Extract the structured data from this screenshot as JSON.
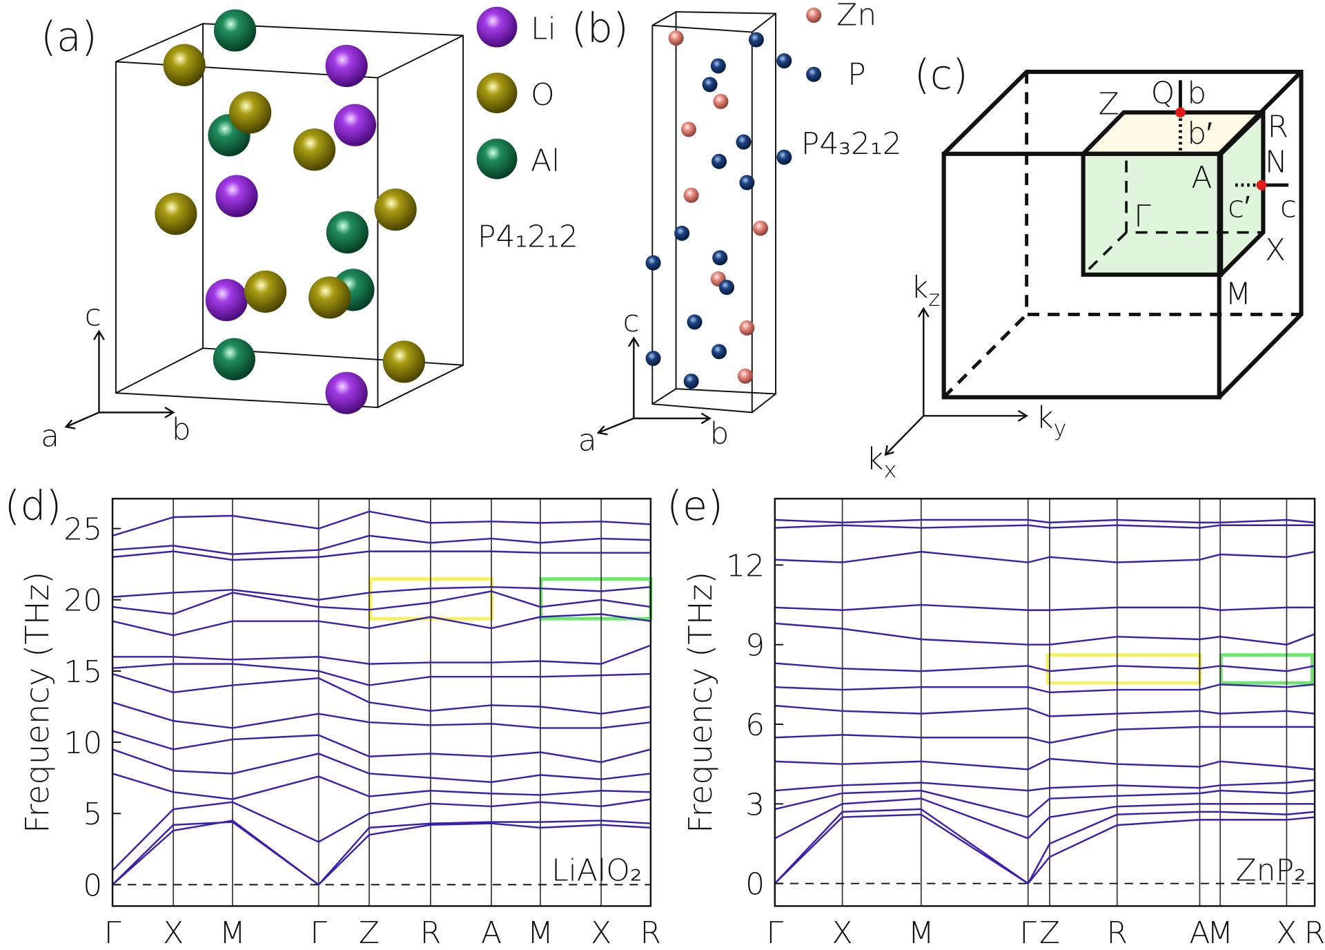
{
  "panels": {
    "a": {
      "label": "(a)",
      "legend": [
        "Li",
        "O",
        "Al"
      ],
      "space_group": "P4₁2₁2",
      "axes": [
        "c",
        "a",
        "b"
      ]
    },
    "b": {
      "label": "(b)",
      "legend": [
        "Zn",
        "P"
      ],
      "space_group": "P4₃2₁2",
      "axes": [
        "c",
        "a",
        "b"
      ]
    },
    "c": {
      "label": "(c)",
      "points": [
        "Z",
        "Q",
        "b",
        "R",
        "b′",
        "A",
        "N",
        "Γ",
        "c′",
        "c",
        "X",
        "M"
      ],
      "axes": [
        {
          "base": "k",
          "sub": "z"
        },
        {
          "base": "k",
          "sub": "y"
        },
        {
          "base": "k",
          "sub": "x"
        }
      ]
    }
  },
  "chart_data": [
    {
      "type": "line",
      "label": "(d)",
      "ylabel": "Frequency (THz)",
      "annotation": "LiAlO₂",
      "color": "#3b1fae",
      "x": [
        0,
        0.113,
        0.223,
        0.383,
        0.477,
        0.591,
        0.704,
        0.795,
        0.908,
        1
      ],
      "xlim": [
        0,
        1
      ],
      "xticks": [
        {
          "value": 0,
          "label": "Γ"
        },
        {
          "value": 0.113,
          "label": "X"
        },
        {
          "value": 0.223,
          "label": "M"
        },
        {
          "value": 0.383,
          "label": "Γ"
        },
        {
          "value": 0.477,
          "label": "Z"
        },
        {
          "value": 0.591,
          "label": "R"
        },
        {
          "value": 0.704,
          "label": "A"
        },
        {
          "value": 0.795,
          "label": "M"
        },
        {
          "value": 0.908,
          "label": "X"
        },
        {
          "value": 1,
          "label": "R"
        }
      ],
      "ylim": [
        -1.5,
        27.1
      ],
      "yticks": [
        0,
        5,
        10,
        15,
        20,
        25
      ],
      "series": [
        {
          "values": [
            0,
            3.8,
            4.5,
            0,
            3.5,
            4.2,
            4.3,
            4.0,
            4.2,
            4.0
          ]
        },
        {
          "values": [
            0,
            4.2,
            4.4,
            0,
            4.0,
            4.3,
            4.4,
            4.4,
            4.5,
            4.3
          ]
        },
        {
          "values": [
            1,
            5.3,
            5.8,
            3,
            5.0,
            5.7,
            5.5,
            5.8,
            5.5,
            6.0
          ]
        },
        {
          "values": [
            7.8,
            6.5,
            6.0,
            7.6,
            6.2,
            6.6,
            6.4,
            6.3,
            6.6,
            6.5
          ]
        },
        {
          "values": [
            9.5,
            8.0,
            7.8,
            9.2,
            7.8,
            7.5,
            7.2,
            7.7,
            7.4,
            7.8
          ]
        },
        {
          "values": [
            10.8,
            9.5,
            10.2,
            10.5,
            9.0,
            9.2,
            9.0,
            9.3,
            8.6,
            9.5
          ]
        },
        {
          "values": [
            12.8,
            11.5,
            11.0,
            12.0,
            11.4,
            11.2,
            11.3,
            11.0,
            11.0,
            11.4
          ]
        },
        {
          "values": [
            14.8,
            13.5,
            14.0,
            14.5,
            12.8,
            12.2,
            12.6,
            12.5,
            12.0,
            12.5
          ]
        },
        {
          "values": [
            15.2,
            15.5,
            15.5,
            15.0,
            14.0,
            14.6,
            14.6,
            14.6,
            14.7,
            14.8
          ]
        },
        {
          "values": [
            16.0,
            16.0,
            15.8,
            16.0,
            15.5,
            15.6,
            15.6,
            15.7,
            15.5,
            16.8
          ]
        },
        {
          "values": [
            18.5,
            17.5,
            18.5,
            18.5,
            18.0,
            18.8,
            18.0,
            18.8,
            19.0,
            18.5
          ]
        },
        {
          "values": [
            19.5,
            19.0,
            20.5,
            19.5,
            19.3,
            19.8,
            20.6,
            19.5,
            20.0,
            19.5
          ]
        },
        {
          "values": [
            20.2,
            20.5,
            20.7,
            20.0,
            20.5,
            20.8,
            20.9,
            20.8,
            20.6,
            20.9
          ]
        },
        {
          "values": [
            23.0,
            23.4,
            22.8,
            23.0,
            23.4,
            23.4,
            23.4,
            23.3,
            23.3,
            23.3
          ]
        },
        {
          "values": [
            23.5,
            23.8,
            23.2,
            23.5,
            24.5,
            24.0,
            24.3,
            24.0,
            24.3,
            24.2
          ]
        },
        {
          "values": [
            24.5,
            25.8,
            25.9,
            25.0,
            26.2,
            25.4,
            25.5,
            25.4,
            25.5,
            25.3
          ]
        }
      ]
    },
    {
      "type": "line",
      "label": "(e)",
      "ylabel": "Frequency (THz)",
      "annotation": "ZnP₂",
      "color": "#3b1fae",
      "x": [
        0,
        0.125,
        0.271,
        0.469,
        0.509,
        0.634,
        0.787,
        0.825,
        0.948,
        1
      ],
      "xlim": [
        0,
        1
      ],
      "xticks": [
        {
          "value": 0,
          "label": "Γ"
        },
        {
          "value": 0.125,
          "label": "X"
        },
        {
          "value": 0.271,
          "label": "M"
        },
        {
          "value": 0.469,
          "label": "Γ"
        },
        {
          "value": 0.509,
          "label": "Z"
        },
        {
          "value": 0.634,
          "label": "R"
        },
        {
          "value": 0.787,
          "label": "A"
        },
        {
          "value": 0.825,
          "label": "M"
        },
        {
          "value": 0.948,
          "label": "X"
        },
        {
          "value": 1,
          "label": "R"
        }
      ],
      "ylim": [
        -0.85,
        14.5
      ],
      "yticks": [
        0,
        3,
        6,
        9,
        12
      ],
      "series": [
        {
          "values": [
            0,
            2.5,
            2.6,
            0,
            1.0,
            2.2,
            2.4,
            2.4,
            2.4,
            2.5
          ]
        },
        {
          "values": [
            0,
            2.7,
            2.8,
            0,
            1.5,
            2.6,
            2.7,
            2.7,
            2.6,
            2.7
          ]
        },
        {
          "values": [
            1.7,
            3.0,
            3.2,
            1.7,
            2.5,
            2.9,
            3.0,
            3.0,
            3.0,
            3.0
          ]
        },
        {
          "values": [
            2.8,
            3.4,
            3.5,
            2.5,
            3.2,
            3.3,
            3.4,
            3.5,
            3.4,
            3.5
          ]
        },
        {
          "values": [
            3.5,
            3.7,
            3.8,
            3.5,
            3.6,
            3.7,
            3.6,
            3.7,
            3.8,
            3.9
          ]
        },
        {
          "values": [
            4.6,
            4.5,
            4.6,
            4.3,
            4.7,
            4.5,
            4.4,
            4.6,
            4.4,
            4.3
          ]
        },
        {
          "values": [
            5.5,
            5.6,
            5.5,
            5.5,
            5.3,
            5.8,
            5.9,
            5.9,
            5.9,
            5.9
          ]
        },
        {
          "values": [
            6.7,
            6.5,
            6.4,
            6.6,
            6.3,
            6.4,
            6.5,
            6.4,
            6.5,
            6.4
          ]
        },
        {
          "values": [
            7.4,
            7.3,
            7.4,
            7.4,
            7.2,
            7.3,
            7.3,
            7.5,
            7.4,
            7.5
          ]
        },
        {
          "values": [
            8.3,
            8.1,
            8.0,
            8.2,
            8.0,
            8.2,
            8.1,
            8.2,
            8.0,
            8.2
          ]
        },
        {
          "values": [
            9.8,
            9.6,
            9.2,
            9.0,
            9.0,
            9.3,
            9.2,
            9.3,
            9.0,
            9.4
          ]
        },
        {
          "values": [
            10.4,
            10.3,
            10.5,
            10.3,
            10.3,
            10.4,
            10.4,
            10.3,
            10.4,
            10.4
          ]
        },
        {
          "values": [
            12.2,
            12.1,
            12.5,
            12.1,
            12.3,
            12.1,
            12.2,
            12.4,
            12.3,
            12.5
          ]
        },
        {
          "values": [
            13.4,
            13.5,
            13.4,
            13.5,
            13.4,
            13.5,
            13.4,
            13.5,
            13.5,
            13.5
          ]
        },
        {
          "values": [
            13.7,
            13.6,
            13.7,
            13.7,
            13.6,
            13.7,
            13.6,
            13.6,
            13.7,
            13.6
          ]
        }
      ]
    }
  ]
}
